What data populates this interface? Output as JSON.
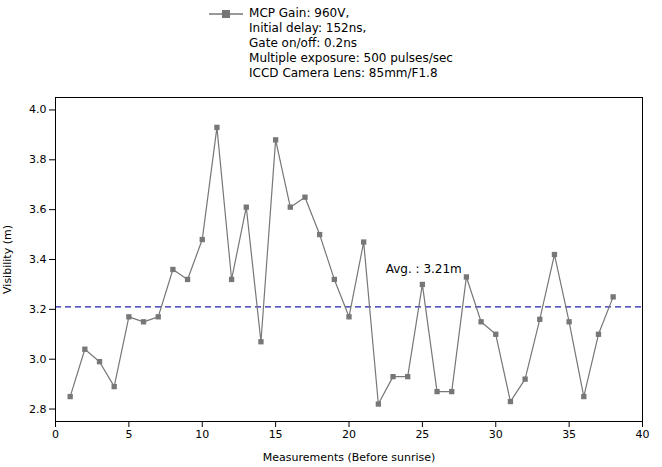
{
  "chart_data": {
    "type": "line",
    "x": [
      1,
      2,
      3,
      4,
      5,
      6,
      7,
      8,
      9,
      10,
      11,
      12,
      13,
      14,
      15,
      16,
      17,
      18,
      19,
      20,
      21,
      22,
      23,
      24,
      25,
      26,
      27,
      28,
      29,
      30,
      31,
      32,
      33,
      34,
      35,
      36,
      37,
      38
    ],
    "series": [
      {
        "name": "MCP Gain: 960V,\nInitial delay: 152ns,\nGate on/off: 0.2ns\nMultiple exposure: 500 pulses/sec\nICCD Camera Lens: 85mm/F1.8",
        "color": "#777777",
        "marker": "square",
        "values": [
          2.85,
          3.04,
          2.99,
          2.89,
          3.17,
          3.15,
          3.17,
          3.36,
          3.32,
          3.48,
          3.93,
          3.32,
          3.61,
          3.07,
          3.88,
          3.61,
          3.65,
          3.5,
          3.32,
          3.17,
          3.47,
          2.82,
          2.93,
          2.93,
          3.3,
          2.87,
          2.87,
          3.33,
          3.15,
          3.1,
          2.83,
          2.92,
          3.16,
          3.42,
          3.15,
          2.85,
          3.1,
          3.25
        ]
      }
    ],
    "avg_line": {
      "value": 3.21,
      "color": "#2222aa",
      "line_style": "dashed"
    },
    "annotations": [
      {
        "text": "Avg. : 3.21m",
        "x": 22.5,
        "y": 3.36
      }
    ],
    "xlabel": "Measurements (Before sunrise)",
    "ylabel": "Visibility (m)",
    "xlim": [
      0,
      40
    ],
    "ylim": [
      2.75,
      4.05
    ],
    "xticks": [
      0,
      5,
      10,
      15,
      20,
      25,
      30,
      35,
      40
    ],
    "yticks": [
      2.8,
      {
        "value": 3.0,
        "label": "3.0"
      },
      3.2,
      3.4,
      3.6,
      3.8,
      {
        "value": 4.0,
        "label": "4.0"
      }
    ],
    "grid": false,
    "legend": "upper center"
  }
}
